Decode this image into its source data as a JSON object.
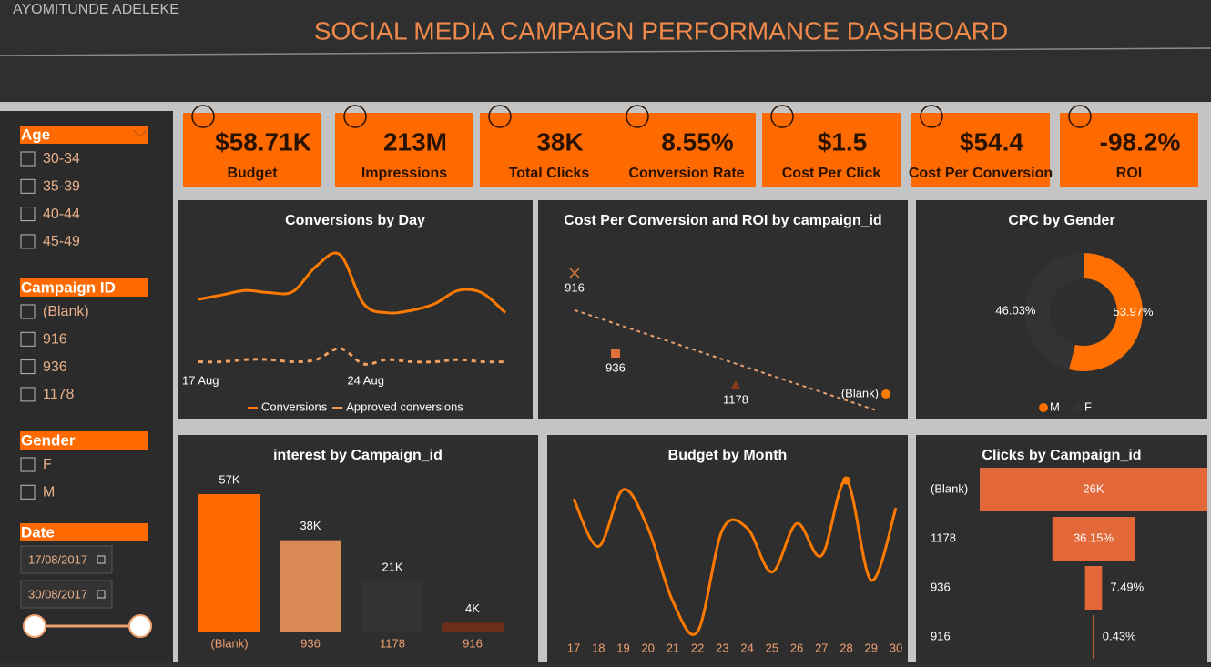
{
  "header": {
    "author": "AYOMITUNDE ADELEKE",
    "title": "SOCIAL MEDIA CAMPAIGN PERFORMANCE DASHBOARD"
  },
  "kpis": [
    {
      "value": "$58.71K",
      "label": "Budget"
    },
    {
      "value": "213M",
      "label": "Impressions"
    },
    {
      "value": "38K",
      "label": "Total Clicks"
    },
    {
      "value": "8.55%",
      "label": "Conversion Rate"
    },
    {
      "value": "$1.5",
      "label": "Cost Per Click"
    },
    {
      "value": "$54.4",
      "label": "Cost Per Conversion"
    },
    {
      "value": "-98.2%",
      "label": "ROI"
    }
  ],
  "filters": {
    "age": {
      "title": "Age",
      "options": [
        "30-34",
        "35-39",
        "40-44",
        "45-49"
      ]
    },
    "campaign": {
      "title": "Campaign ID",
      "options": [
        "(Blank)",
        "916",
        "936",
        "1178"
      ]
    },
    "gender": {
      "title": "Gender",
      "options": [
        "F",
        "M"
      ]
    },
    "date": {
      "title": "Date",
      "start": "17/08/2017",
      "end": "30/08/2017"
    }
  },
  "chart_data": [
    {
      "type": "line",
      "title": "Conversions by Day",
      "categories": [
        "17 Aug",
        null,
        null,
        null,
        null,
        null,
        null,
        "24 Aug",
        null,
        null,
        null,
        null,
        null,
        null
      ],
      "series": [
        {
          "name": "Conversions",
          "color": "#ff7a00",
          "dash": false,
          "values": [
            40,
            42,
            44,
            43,
            43.5,
            55,
            60,
            38,
            34,
            35,
            38,
            44,
            43,
            34
          ]
        },
        {
          "name": "Approved conversions",
          "color": "#f0a060",
          "dash": true,
          "values": [
            12,
            12,
            13,
            13,
            12,
            13,
            18,
            11,
            13,
            12,
            12,
            13,
            12,
            12
          ]
        }
      ]
    },
    {
      "type": "scatter",
      "title": "Cost Per Conversion and ROI by campaign_id",
      "categories": [
        "916",
        "936",
        "1178",
        "(Blank)"
      ],
      "x": [
        3.1,
        7.6,
        20.8,
        37.3
      ],
      "y": [
        80,
        36,
        18.5,
        13.5
      ],
      "markers": [
        "x",
        "square",
        "triangle",
        "circle"
      ],
      "colors": [
        "#e07a40",
        "#e0703a",
        "#8a3a1a",
        "#ff7a00"
      ],
      "trend": true
    },
    {
      "type": "donut",
      "title": "CPC by Gender",
      "categories": [
        "M",
        "F"
      ],
      "values": [
        53.97,
        46.03
      ],
      "value_labels": [
        "53.97%",
        "46.03%"
      ],
      "colors": [
        "#ff7000",
        "#333333"
      ]
    },
    {
      "type": "bar",
      "title": "interest by Campaign_id",
      "categories": [
        "(Blank)",
        "936",
        "1178",
        "916"
      ],
      "values": [
        57000,
        38000,
        21000,
        4000
      ],
      "value_labels": [
        "57K",
        "38K",
        "21K",
        "4K"
      ],
      "colors": [
        "#ff6a00",
        "#d98a55",
        "#333333",
        "#6b2e1a"
      ]
    },
    {
      "type": "curve",
      "title": "Budget by Month",
      "x": [
        17,
        18,
        19,
        20,
        21,
        22,
        23,
        24,
        25,
        26,
        27,
        28,
        29,
        30
      ],
      "values": [
        4560,
        3000,
        4860,
        3600,
        1200,
        210,
        3540,
        3600,
        2160,
        3750,
        2700,
        5160,
        1890,
        4260
      ],
      "color": "#ff7a00"
    },
    {
      "type": "funnel",
      "title": "Clicks by Campaign_id",
      "categories": [
        "(Blank)",
        "1178",
        "936",
        "916"
      ],
      "values": [
        26000,
        9399,
        1947,
        112
      ],
      "value_labels": [
        "26K",
        null,
        null,
        null
      ],
      "percent_labels": [
        null,
        "36.15%",
        "7.49%",
        "0.43%"
      ],
      "color": "#e2683a"
    }
  ]
}
